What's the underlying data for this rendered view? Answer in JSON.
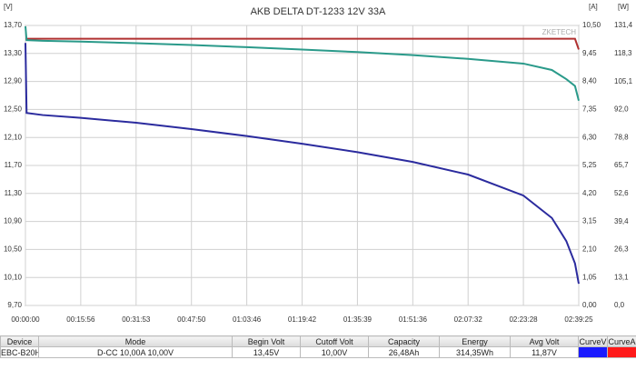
{
  "chart_data": {
    "type": "line",
    "title": "AKB DELTA DT-1233 12V 33A",
    "watermark": "ZKETECH",
    "ylabel": "[V]",
    "y2label": "[A]",
    "y3label": "[W]",
    "x": [
      0,
      20,
      300,
      956,
      1913,
      2870,
      3826,
      4782,
      5739,
      6696,
      7652,
      8608,
      9100,
      9350,
      9500,
      9565
    ],
    "xlim": [
      0,
      9565
    ],
    "xticks": [
      {
        "value": 0,
        "label": "00:00:00"
      },
      {
        "value": 956,
        "label": "00:15:56"
      },
      {
        "value": 1913,
        "label": "00:31:53"
      },
      {
        "value": 2870,
        "label": "00:47:50"
      },
      {
        "value": 3826,
        "label": "01:03:46"
      },
      {
        "value": 4782,
        "label": "01:19:42"
      },
      {
        "value": 5739,
        "label": "01:35:39"
      },
      {
        "value": 6696,
        "label": "01:51:36"
      },
      {
        "value": 7652,
        "label": "02:07:32"
      },
      {
        "value": 8608,
        "label": "02:23:28"
      },
      {
        "value": 9565,
        "label": "02:39:25"
      }
    ],
    "ylim": [
      9.7,
      13.7
    ],
    "yticks": [
      {
        "value": 9.7,
        "label": "9,70"
      },
      {
        "value": 10.1,
        "label": "10,10"
      },
      {
        "value": 10.5,
        "label": "10,50"
      },
      {
        "value": 10.9,
        "label": "10,90"
      },
      {
        "value": 11.3,
        "label": "11,30"
      },
      {
        "value": 11.7,
        "label": "11,70"
      },
      {
        "value": 12.1,
        "label": "12,10"
      },
      {
        "value": 12.5,
        "label": "12,50"
      },
      {
        "value": 12.9,
        "label": "12,90"
      },
      {
        "value": 13.3,
        "label": "13,30"
      },
      {
        "value": 13.7,
        "label": "13,70"
      }
    ],
    "y2lim": [
      0,
      10.5
    ],
    "y2ticks": [
      {
        "value": 0,
        "label": "0,00"
      },
      {
        "value": 1.05,
        "label": "1,05"
      },
      {
        "value": 2.1,
        "label": "2,10"
      },
      {
        "value": 3.15,
        "label": "3,15"
      },
      {
        "value": 4.2,
        "label": "4,20"
      },
      {
        "value": 5.25,
        "label": "5,25"
      },
      {
        "value": 6.3,
        "label": "6,30"
      },
      {
        "value": 7.35,
        "label": "7,35"
      },
      {
        "value": 8.4,
        "label": "8,40"
      },
      {
        "value": 9.45,
        "label": "9,45"
      },
      {
        "value": 10.5,
        "label": "10,50"
      }
    ],
    "y3lim": [
      0,
      131.4
    ],
    "y3ticks": [
      {
        "value": 0,
        "label": "0,0"
      },
      {
        "value": 13.1,
        "label": "13,1"
      },
      {
        "value": 26.3,
        "label": "26,3"
      },
      {
        "value": 39.4,
        "label": "39,4"
      },
      {
        "value": 52.6,
        "label": "52,6"
      },
      {
        "value": 65.7,
        "label": "65,7"
      },
      {
        "value": 78.8,
        "label": "78,8"
      },
      {
        "value": 92.0,
        "label": "92,0"
      },
      {
        "value": 105.1,
        "label": "105,1"
      },
      {
        "value": 118.3,
        "label": "118,3"
      },
      {
        "value": 131.4,
        "label": "131,4"
      }
    ],
    "grid": true,
    "series": [
      {
        "color": "#2b2b9e",
        "axis": "y",
        "values": [
          13.45,
          12.45,
          12.42,
          12.38,
          12.31,
          12.22,
          12.12,
          12.01,
          11.89,
          11.75,
          11.57,
          11.27,
          10.95,
          10.62,
          10.3,
          10.01
        ]
      },
      {
        "color": "#b03030",
        "axis": "y2",
        "values": [
          10.0,
          10.0,
          10.0,
          10.0,
          10.0,
          10.0,
          10.0,
          10.0,
          10.0,
          10.0,
          10.0,
          10.0,
          10.0,
          10.0,
          10.0,
          9.6
        ]
      },
      {
        "color": "#2a9a8a",
        "axis": "y3",
        "values": [
          131.0,
          124.5,
          124.2,
          123.8,
          123.1,
          122.2,
          121.2,
          120.1,
          118.9,
          117.5,
          115.7,
          113.5,
          110.5,
          106.2,
          103.0,
          96.1
        ]
      }
    ]
  },
  "table": {
    "headers": [
      "Device",
      "Mode",
      "Begin Volt",
      "Cutoff Volt",
      "Capacity",
      "Energy",
      "Avg Volt",
      "CurveV",
      "CurveA"
    ],
    "row": [
      "EBC-B20H",
      "D-CC 10,00A 10,00V",
      "13,45V",
      "10,00V",
      "26,48Ah",
      "314,35Wh",
      "11,87V"
    ],
    "curve_colors": [
      "#1a1aff",
      "#ff1a1a"
    ]
  }
}
